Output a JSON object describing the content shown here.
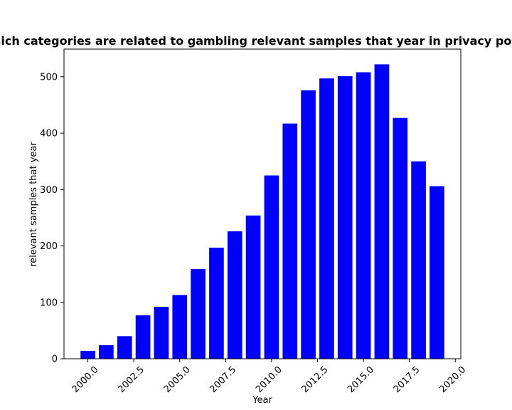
{
  "chart_data": {
    "type": "bar",
    "title": "Which categories are related to gambling relevant samples that year in privacy policies",
    "xlabel": "Year",
    "ylabel": "relevant samples that year",
    "x": [
      2000,
      2001,
      2002,
      2003,
      2004,
      2005,
      2006,
      2007,
      2008,
      2009,
      2010,
      2011,
      2012,
      2013,
      2014,
      2015,
      2016,
      2017,
      2018,
      2019
    ],
    "values": [
      14,
      24,
      40,
      77,
      92,
      113,
      159,
      197,
      226,
      254,
      325,
      417,
      476,
      497,
      501,
      508,
      522,
      427,
      350,
      306
    ],
    "xlim": [
      1998.7,
      2020.3
    ],
    "ylim": [
      0,
      549
    ],
    "xticks": [
      2000.0,
      2002.5,
      2005.0,
      2007.5,
      2010.0,
      2012.5,
      2015.0,
      2017.5,
      2020.0
    ],
    "xtick_labels": [
      "2000.0",
      "2002.5",
      "2005.0",
      "2007.5",
      "2010.0",
      "2012.5",
      "2015.0",
      "2017.5",
      "2020.0"
    ],
    "yticks": [
      0,
      100,
      200,
      300,
      400,
      500
    ],
    "ytick_labels": [
      "0",
      "100",
      "200",
      "300",
      "400",
      "500"
    ],
    "bar_width": 0.8,
    "bar_color": "#0000ff",
    "grid": false,
    "legend": "none"
  }
}
